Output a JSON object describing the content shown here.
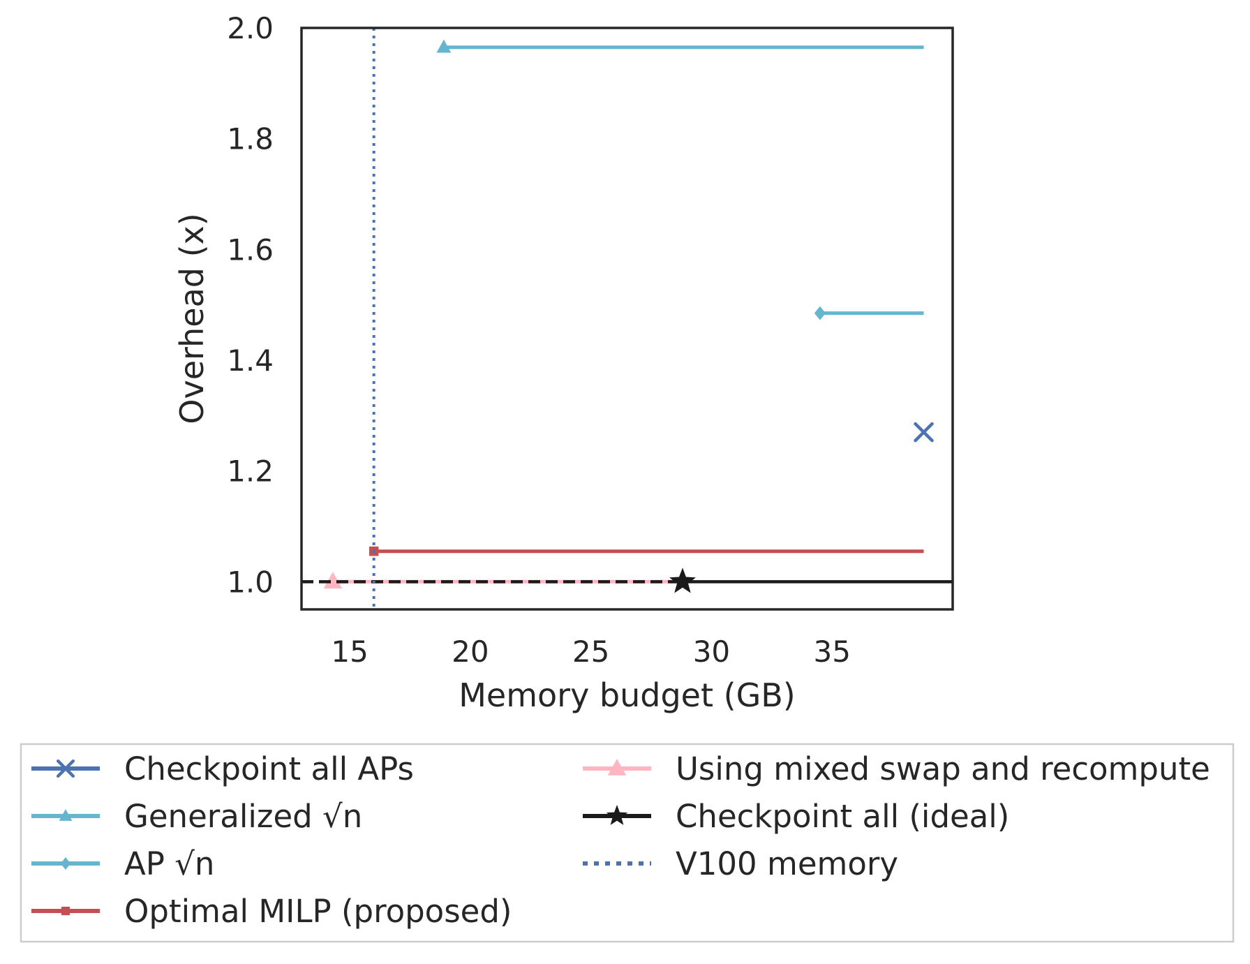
{
  "chart_data": {
    "type": "line",
    "title": "",
    "xlabel": "Memory budget (GB)",
    "ylabel": "Overhead (x)",
    "xlim": [
      13.0,
      40.0
    ],
    "ylim": [
      0.95,
      2.0
    ],
    "xticks": [
      15,
      20,
      25,
      30,
      35
    ],
    "yticks": [
      1.0,
      1.2,
      1.4,
      1.6,
      1.8,
      2.0
    ],
    "xtick_labels": [
      "15",
      "20",
      "25",
      "30",
      35
    ],
    "ytick_labels": [
      "1.0",
      "1.2",
      "1.4",
      "1.6",
      "1.8",
      "2.0"
    ],
    "grid": false,
    "legend_position": "below",
    "series": [
      {
        "name": "Checkpoint all APs",
        "color": "#4c72b0",
        "marker": "x",
        "line_style": "solid",
        "legend_order": 0,
        "points": [
          {
            "x": 38.8,
            "y": 1.27
          }
        ]
      },
      {
        "name": "Generalized √n",
        "color": "#64b5cd",
        "marker": "triangle",
        "line_style": "solid",
        "legend_order": 1,
        "points": [
          {
            "x": 18.9,
            "y": 1.965
          },
          {
            "x": 38.8,
            "y": 1.965
          }
        ]
      },
      {
        "name": "AP √n",
        "color": "#64b5cd",
        "marker": "diamond",
        "line_style": "solid",
        "legend_order": 2,
        "points": [
          {
            "x": 34.5,
            "y": 1.485
          },
          {
            "x": 38.8,
            "y": 1.485
          }
        ]
      },
      {
        "name": "Optimal MILP (proposed)",
        "color": "#c44e52",
        "marker": "square",
        "line_style": "solid",
        "legend_order": 3,
        "points": [
          {
            "x": 16.0,
            "y": 1.055
          },
          {
            "x": 38.8,
            "y": 1.055
          }
        ]
      },
      {
        "name": "Using mixed swap and recompute",
        "color": "#ffb6c1",
        "marker": "triangle",
        "line_style": "solid",
        "legend_order": 4,
        "points": [
          {
            "x": 14.3,
            "y": 1.0
          },
          {
            "x": 28.8,
            "y": 1.0
          }
        ]
      },
      {
        "name": "Checkpoint all (ideal)",
        "color": "#1a1a1a",
        "marker": "star",
        "line_style": "hline",
        "legend_order": 5,
        "points": [
          {
            "x": 28.8,
            "y": 1.0
          }
        ],
        "left_style": "dashed",
        "right_style": "solid"
      },
      {
        "name": "V100 memory",
        "color": "#4c72b0",
        "marker": "none",
        "line_style": "vline-dotted",
        "legend_order": 6,
        "points": [
          {
            "x": 16.0,
            "y": null
          }
        ]
      }
    ]
  }
}
